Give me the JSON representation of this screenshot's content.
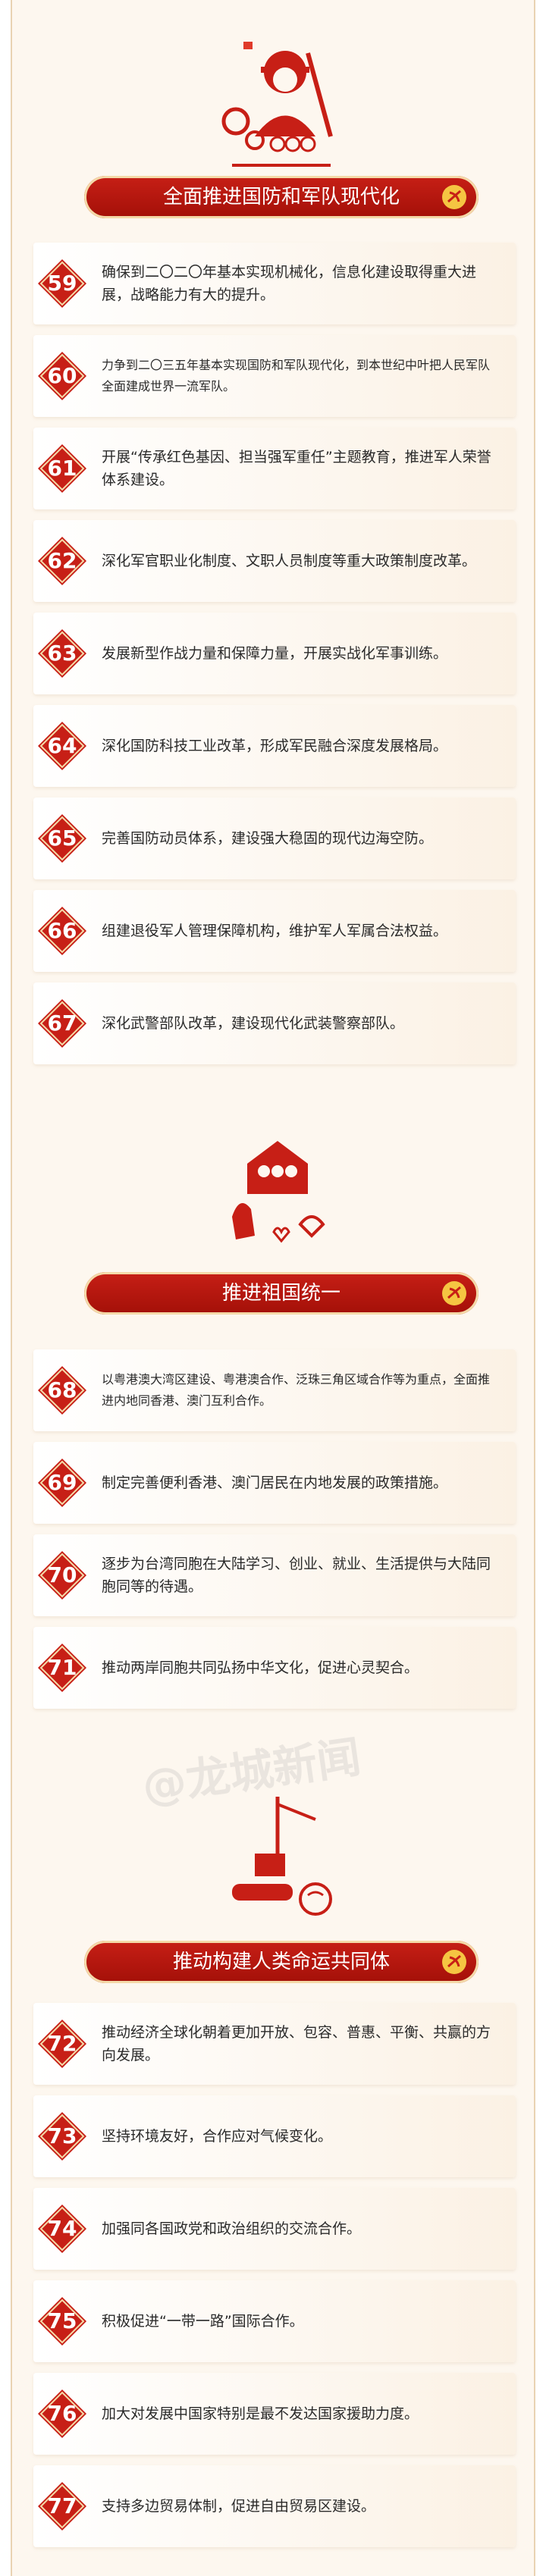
{
  "sections": [
    {
      "title": "全面推进国防和军队现代化",
      "icon": "soldier-icon",
      "items": [
        {
          "num": "59",
          "text": "确保到二〇二〇年基本实现机械化，信息化建设取得重大进展，战略能力有大的提升。"
        },
        {
          "num": "60",
          "text": "力争到二〇三五年基本实现国防和军队现代化，到本世纪中叶把人民军队全面建成世界一流军队。"
        },
        {
          "num": "61",
          "text": "开展“传承红色基因、担当强军重任”主题教育，推进军人荣誉体系建设。"
        },
        {
          "num": "62",
          "text": "深化军官职业化制度、文职人员制度等重大政策制度改革。"
        },
        {
          "num": "63",
          "text": "发展新型作战力量和保障力量，开展实战化军事训练。"
        },
        {
          "num": "64",
          "text": "深化国防科技工业改革，形成军民融合深度发展格局。"
        },
        {
          "num": "65",
          "text": "完善国防动员体系，建设强大稳固的现代边海空防。"
        },
        {
          "num": "66",
          "text": "组建退役军人管理保障机构，维护军人军属合法权益。"
        },
        {
          "num": "67",
          "text": "深化武警部队改革，建设现代化武装警察部队。"
        }
      ]
    },
    {
      "title": "推进祖国统一",
      "icon": "unity-hands-icon",
      "items": [
        {
          "num": "68",
          "text": "以粤港澳大湾区建设、粤港澳合作、泛珠三角区域合作等为重点，全面推进内地同香港、澳门互利合作。"
        },
        {
          "num": "69",
          "text": "制定完善便利香港、澳门居民在内地发展的政策措施。"
        },
        {
          "num": "70",
          "text": "逐步为台湾同胞在大陆学习、创业、就业、生活提供与大陆同胞同等的待遇。"
        },
        {
          "num": "71",
          "text": "推动两岸同胞共同弘扬中华文化，促进心灵契合。"
        }
      ]
    },
    {
      "title": "推动构建人类命运共同体",
      "icon": "trade-globe-icon",
      "items": [
        {
          "num": "72",
          "text": "推动经济全球化朝着更加开放、包容、普惠、平衡、共赢的方向发展。"
        },
        {
          "num": "73",
          "text": "坚持环境友好，合作应对气候变化。"
        },
        {
          "num": "74",
          "text": "加强同各国政党和政治组织的交流合作。"
        },
        {
          "num": "75",
          "text": "积极促进“一带一路”国际合作。"
        },
        {
          "num": "76",
          "text": "加大对发展中国家特别是最不发达国家援助力度。"
        },
        {
          "num": "77",
          "text": "支持多边贸易体制，促进自由贸易区建设。"
        }
      ]
    }
  ],
  "watermark_mid": "@龙城新闻",
  "watermark_low": "@龙城新闻",
  "colors": {
    "red": "#c71f16",
    "gold": "#f4d9a8",
    "text": "#2a2a2a"
  }
}
